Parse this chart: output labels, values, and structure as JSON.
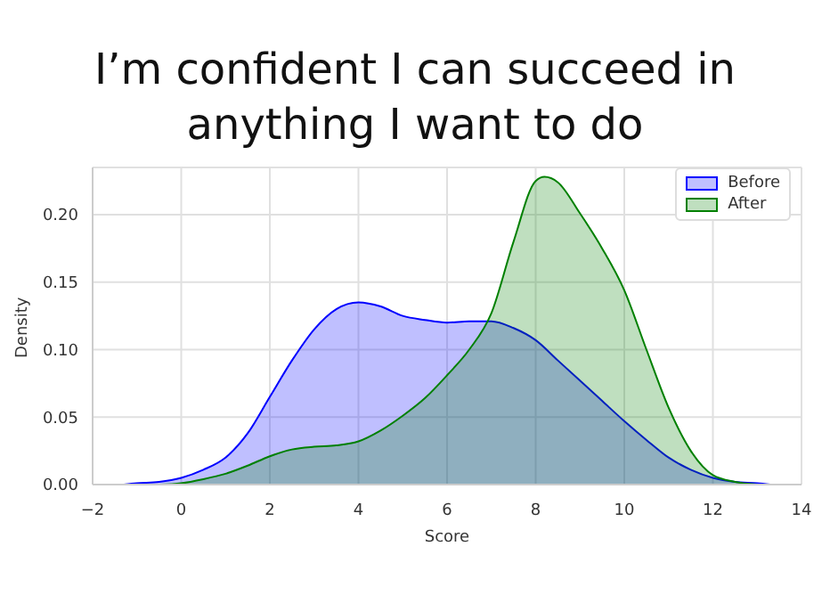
{
  "chart_data": {
    "type": "area",
    "title": "I’m confident I can succeed in anything I want to do",
    "xlabel": "Score",
    "ylabel": "Density",
    "series": [
      {
        "name": "Before",
        "color": "#0000ff",
        "x": [
          -1.3,
          -1,
          -0.5,
          0,
          0.5,
          1,
          1.5,
          2,
          2.5,
          3,
          3.5,
          4,
          4.5,
          5,
          5.5,
          6,
          6.5,
          7,
          7.5,
          8,
          8.5,
          9,
          9.5,
          10,
          10.5,
          11,
          11.5,
          12,
          12.5,
          13,
          13.3
        ],
        "values": [
          0,
          0.001,
          0.002,
          0.005,
          0.011,
          0.02,
          0.038,
          0.065,
          0.092,
          0.115,
          0.13,
          0.135,
          0.132,
          0.125,
          0.122,
          0.12,
          0.121,
          0.121,
          0.116,
          0.107,
          0.092,
          0.077,
          0.062,
          0.047,
          0.033,
          0.02,
          0.011,
          0.005,
          0.002,
          0.001,
          0
        ]
      },
      {
        "name": "After",
        "color": "#008000",
        "x": [
          -0.5,
          0,
          0.5,
          1,
          1.5,
          2,
          2.5,
          3,
          3.5,
          4,
          4.5,
          5,
          5.5,
          6,
          6.5,
          7,
          7.5,
          8,
          8.2,
          8.5,
          9,
          9.5,
          10,
          10.5,
          11,
          11.5,
          12,
          12.5,
          13
        ],
        "values": [
          0,
          0.001,
          0.004,
          0.008,
          0.014,
          0.021,
          0.026,
          0.028,
          0.029,
          0.032,
          0.04,
          0.051,
          0.064,
          0.081,
          0.1,
          0.127,
          0.18,
          0.225,
          0.228,
          0.224,
          0.201,
          0.175,
          0.144,
          0.1,
          0.057,
          0.025,
          0.007,
          0.002,
          0
        ]
      }
    ],
    "xlim": [
      -2,
      14
    ],
    "xticks": [
      {
        "value": -2,
        "label": "−2"
      },
      0,
      2,
      4,
      6,
      8,
      10,
      12,
      14
    ],
    "ylim": [
      0,
      0.235
    ],
    "yticks": [
      {
        "value": 0,
        "label": "0.00"
      },
      {
        "value": 0.05,
        "label": "0.05"
      },
      {
        "value": 0.1,
        "label": "0.10"
      },
      {
        "value": 0.15,
        "label": "0.15"
      },
      {
        "value": 0.2,
        "label": "0.20"
      }
    ],
    "grid": true,
    "legend": "top right"
  }
}
